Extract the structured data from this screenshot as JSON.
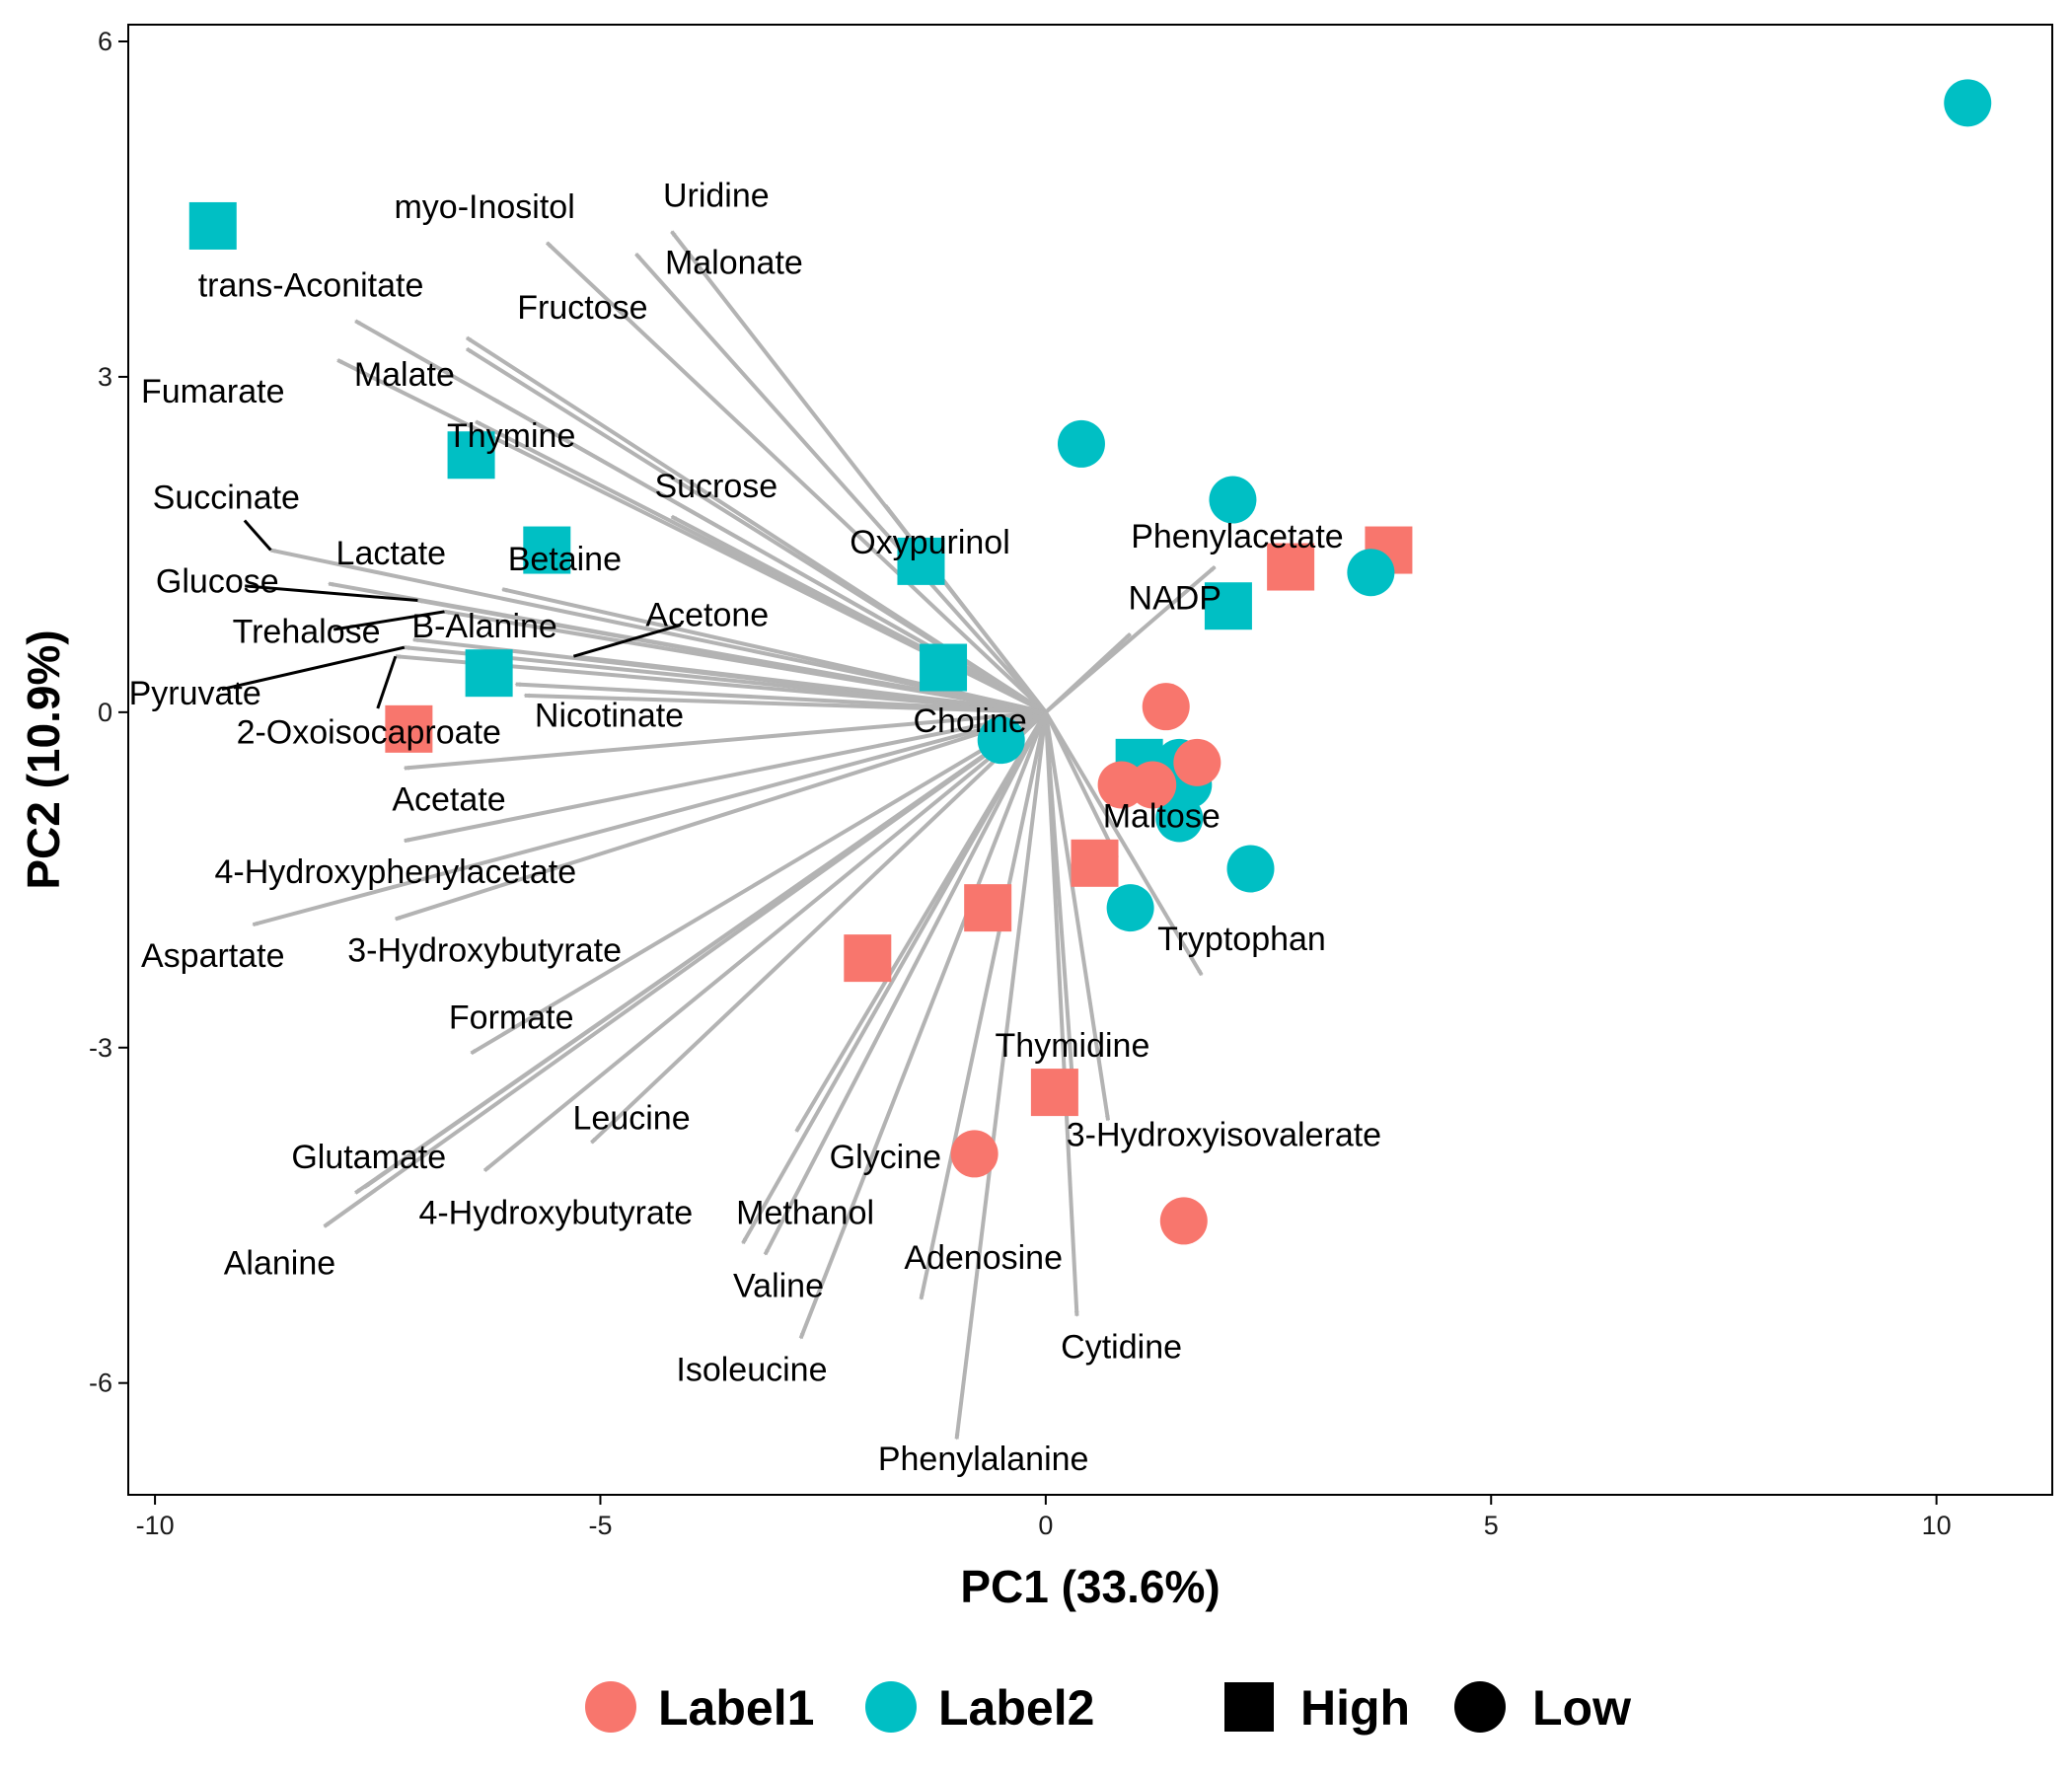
{
  "chart_data": {
    "type": "scatter",
    "subtype": "pca-biplot",
    "title": "",
    "xlabel": "PC1 (33.6%)",
    "ylabel": "PC2 (10.9%)",
    "xlim": [
      -10.3,
      11.3
    ],
    "ylim": [
      -7.0,
      6.15
    ],
    "xticks": [
      -10,
      -5,
      0,
      5,
      10
    ],
    "xtick_labels": [
      "-10",
      "-5",
      "0",
      "5",
      "10"
    ],
    "yticks": [
      -6,
      -3,
      0,
      3,
      6
    ],
    "ytick_labels": [
      "-6",
      "-3",
      "0",
      "3",
      "6"
    ],
    "grid": false,
    "legend_position": "bottom",
    "colors": {
      "Label1": "#F8766D",
      "Label2": "#00BFC4",
      "arrow": "#B3B3B3",
      "leader": "#000000"
    },
    "legend": {
      "color_items": [
        {
          "label": "Label1",
          "color": "#F8766D"
        },
        {
          "label": "Label2",
          "color": "#00BFC4"
        }
      ],
      "shape_items": [
        {
          "label": "High",
          "shape": "square"
        },
        {
          "label": "Low",
          "shape": "circle"
        }
      ]
    },
    "points": [
      {
        "x": -9.35,
        "y": 4.35,
        "group": "Label2",
        "level": "High"
      },
      {
        "x": -6.45,
        "y": 2.3,
        "group": "Label2",
        "level": "High"
      },
      {
        "x": -5.6,
        "y": 1.45,
        "group": "Label2",
        "level": "High"
      },
      {
        "x": -6.25,
        "y": 0.35,
        "group": "Label2",
        "level": "High"
      },
      {
        "x": -1.4,
        "y": 1.35,
        "group": "Label2",
        "level": "High"
      },
      {
        "x": -1.15,
        "y": 0.4,
        "group": "Label2",
        "level": "High"
      },
      {
        "x": 1.05,
        "y": -0.45,
        "group": "Label2",
        "level": "High"
      },
      {
        "x": 2.05,
        "y": 0.95,
        "group": "Label2",
        "level": "High"
      },
      {
        "x": -7.15,
        "y": -0.15,
        "group": "Label1",
        "level": "High"
      },
      {
        "x": -2.0,
        "y": -2.2,
        "group": "Label1",
        "level": "High"
      },
      {
        "x": -0.65,
        "y": -1.75,
        "group": "Label1",
        "level": "High"
      },
      {
        "x": 0.55,
        "y": -1.35,
        "group": "Label1",
        "level": "High"
      },
      {
        "x": 0.1,
        "y": -3.4,
        "group": "Label1",
        "level": "High"
      },
      {
        "x": 2.75,
        "y": 1.3,
        "group": "Label1",
        "level": "High"
      },
      {
        "x": 3.85,
        "y": 1.45,
        "group": "Label1",
        "level": "High"
      },
      {
        "x": 10.35,
        "y": 5.45,
        "group": "Label2",
        "level": "Low"
      },
      {
        "x": 0.4,
        "y": 2.4,
        "group": "Label2",
        "level": "Low"
      },
      {
        "x": 2.1,
        "y": 1.9,
        "group": "Label2",
        "level": "Low"
      },
      {
        "x": 3.65,
        "y": 1.25,
        "group": "Label2",
        "level": "Low"
      },
      {
        "x": -0.5,
        "y": -0.25,
        "group": "Label2",
        "level": "Low"
      },
      {
        "x": 1.5,
        "y": -0.45,
        "group": "Label2",
        "level": "Low"
      },
      {
        "x": 1.6,
        "y": -0.65,
        "group": "Label2",
        "level": "Low"
      },
      {
        "x": 1.5,
        "y": -0.95,
        "group": "Label2",
        "level": "Low"
      },
      {
        "x": 2.3,
        "y": -1.4,
        "group": "Label2",
        "level": "Low"
      },
      {
        "x": 0.95,
        "y": -1.75,
        "group": "Label2",
        "level": "Low"
      },
      {
        "x": 1.35,
        "y": 0.05,
        "group": "Label1",
        "level": "Low"
      },
      {
        "x": 1.7,
        "y": -0.45,
        "group": "Label1",
        "level": "Low"
      },
      {
        "x": 0.85,
        "y": -0.65,
        "group": "Label1",
        "level": "Low"
      },
      {
        "x": 1.2,
        "y": -0.65,
        "group": "Label1",
        "level": "Low"
      },
      {
        "x": -0.8,
        "y": -3.95,
        "group": "Label1",
        "level": "Low"
      },
      {
        "x": 1.55,
        "y": -4.55,
        "group": "Label1",
        "level": "Low"
      }
    ],
    "loadings": [
      {
        "name": "Uridine",
        "x": -4.2,
        "y": 4.3,
        "label_x": -3.7,
        "label_y": 4.6
      },
      {
        "name": "Malonate",
        "x": -4.6,
        "y": 4.1,
        "label_x": -3.5,
        "label_y": 4.0
      },
      {
        "name": "myo-Inositol",
        "x": -5.6,
        "y": 4.2,
        "label_x": -6.3,
        "label_y": 4.5
      },
      {
        "name": "trans-Aconitate",
        "x": -7.75,
        "y": 3.5,
        "label_x": -8.25,
        "label_y": 3.8
      },
      {
        "name": "Fructose",
        "x": -6.5,
        "y": 3.35,
        "label_x": -5.2,
        "label_y": 3.6
      },
      {
        "name": "Fructose-2",
        "x": -6.5,
        "y": 3.25,
        "label_x": null,
        "label_y": null
      },
      {
        "name": "Fumarate",
        "x": -7.95,
        "y": 3.15,
        "label_x": -9.35,
        "label_y": 2.85
      },
      {
        "name": "Malate",
        "x": -6.2,
        "y": 2.8,
        "label_x": -7.2,
        "label_y": 3.0
      },
      {
        "name": "Thymine",
        "x": -6.4,
        "y": 2.6,
        "label_x": -6.0,
        "label_y": 2.45
      },
      {
        "name": "Sucrose",
        "x": -4.2,
        "y": 1.75,
        "label_x": -3.7,
        "label_y": 2.0
      },
      {
        "name": "Oxypurinol",
        "x": -1.8,
        "y": 1.85,
        "label_x": -1.3,
        "label_y": 1.5
      },
      {
        "name": "Succinate",
        "x": -8.7,
        "y": 1.45,
        "label_x": -9.2,
        "label_y": 1.9,
        "leader": true
      },
      {
        "name": "Glucose",
        "x": -7.05,
        "y": 1.0,
        "label_x": -9.3,
        "label_y": 1.15,
        "leader": true
      },
      {
        "name": "Lactate",
        "x": -8.05,
        "y": 1.15,
        "label_x": -7.35,
        "label_y": 1.4
      },
      {
        "name": "Betaine",
        "x": -6.1,
        "y": 1.1,
        "label_x": -5.4,
        "label_y": 1.35
      },
      {
        "name": "Trehalose",
        "x": -6.75,
        "y": 0.9,
        "label_x": -8.3,
        "label_y": 0.7,
        "leader": true
      },
      {
        "name": "B-Alanine",
        "x": -7.1,
        "y": 0.65,
        "label_x": -6.3,
        "label_y": 0.75
      },
      {
        "name": "Pyruvate",
        "x": -7.2,
        "y": 0.58,
        "label_x": -9.55,
        "label_y": 0.15,
        "leader": true
      },
      {
        "name": "2-Oxoisocaproate",
        "x": -7.3,
        "y": 0.5,
        "label_x": -7.6,
        "label_y": -0.2,
        "leader": true
      },
      {
        "name": "Acetone",
        "x": -5.3,
        "y": 0.5,
        "label_x": -3.8,
        "label_y": 0.85,
        "leader": true
      },
      {
        "name": "Nicotinate",
        "x": -5.95,
        "y": 0.25,
        "label_x": -4.9,
        "label_y": -0.05
      },
      {
        "name": "Nicotinate-2",
        "x": -5.85,
        "y": 0.15,
        "label_x": null,
        "label_y": null
      },
      {
        "name": "Phenylacetate",
        "x": 1.9,
        "y": 1.3,
        "label_x": 2.15,
        "label_y": 1.55
      },
      {
        "name": "NADP",
        "x": 0.95,
        "y": 0.7,
        "label_x": 1.45,
        "label_y": 1.0
      },
      {
        "name": "Choline",
        "x": -0.7,
        "y": -0.2,
        "label_x": -0.85,
        "label_y": -0.1
      },
      {
        "name": "Acetate",
        "x": -7.2,
        "y": -0.5,
        "label_x": -6.7,
        "label_y": -0.8
      },
      {
        "name": "4-Hydroxyphenylacetate",
        "x": -7.2,
        "y": -1.15,
        "label_x": -7.3,
        "label_y": -1.45
      },
      {
        "name": "Aspartate",
        "x": -8.9,
        "y": -1.9,
        "label_x": -9.35,
        "label_y": -2.2
      },
      {
        "name": "3-Hydroxybutyrate",
        "x": -7.3,
        "y": -1.85,
        "label_x": -6.3,
        "label_y": -2.15
      },
      {
        "name": "Maltose",
        "x": 0.8,
        "y": -1.3,
        "label_x": 1.3,
        "label_y": -0.95
      },
      {
        "name": "Tryptophan",
        "x": 1.75,
        "y": -2.35,
        "label_x": 2.2,
        "label_y": -2.05
      },
      {
        "name": "Formate",
        "x": -6.45,
        "y": -3.05,
        "label_x": -6.0,
        "label_y": -2.75
      },
      {
        "name": "Thymidine",
        "x": 0.3,
        "y": -3.3,
        "label_x": 0.3,
        "label_y": -3.0
      },
      {
        "name": "3-Hydroxyisovalerate",
        "x": 0.7,
        "y": -3.65,
        "label_x": 2.0,
        "label_y": -3.8
      },
      {
        "name": "Leucine",
        "x": -5.1,
        "y": -3.85,
        "label_x": -4.65,
        "label_y": -3.65
      },
      {
        "name": "Glycine",
        "x": -2.8,
        "y": -3.75,
        "label_x": -1.8,
        "label_y": -4.0
      },
      {
        "name": "Glutamate",
        "x": -7.75,
        "y": -4.3,
        "label_x": -7.6,
        "label_y": -4.0
      },
      {
        "name": "Glutamate-2",
        "x": -7.65,
        "y": -4.25,
        "label_x": null,
        "label_y": null
      },
      {
        "name": "4-Hydroxybutyrate",
        "x": -6.3,
        "y": -4.1,
        "label_x": -5.5,
        "label_y": -4.5
      },
      {
        "name": "Alanine",
        "x": -8.1,
        "y": -4.6,
        "label_x": -8.6,
        "label_y": -4.95
      },
      {
        "name": "Methanol",
        "x": -3.4,
        "y": -4.75,
        "label_x": -2.7,
        "label_y": -4.5
      },
      {
        "name": "Valine",
        "x": -3.15,
        "y": -4.85,
        "label_x": -3.0,
        "label_y": -5.15
      },
      {
        "name": "Adenosine",
        "x": -1.4,
        "y": -5.25,
        "label_x": -0.7,
        "label_y": -4.9
      },
      {
        "name": "Cytidine",
        "x": 0.35,
        "y": -5.4,
        "label_x": 0.85,
        "label_y": -5.7
      },
      {
        "name": "Isoleucine",
        "x": -2.75,
        "y": -5.6,
        "label_x": -3.3,
        "label_y": -5.9
      },
      {
        "name": "Phenylalanine",
        "x": -1.0,
        "y": -6.5,
        "label_x": -0.7,
        "label_y": -6.7
      }
    ]
  }
}
